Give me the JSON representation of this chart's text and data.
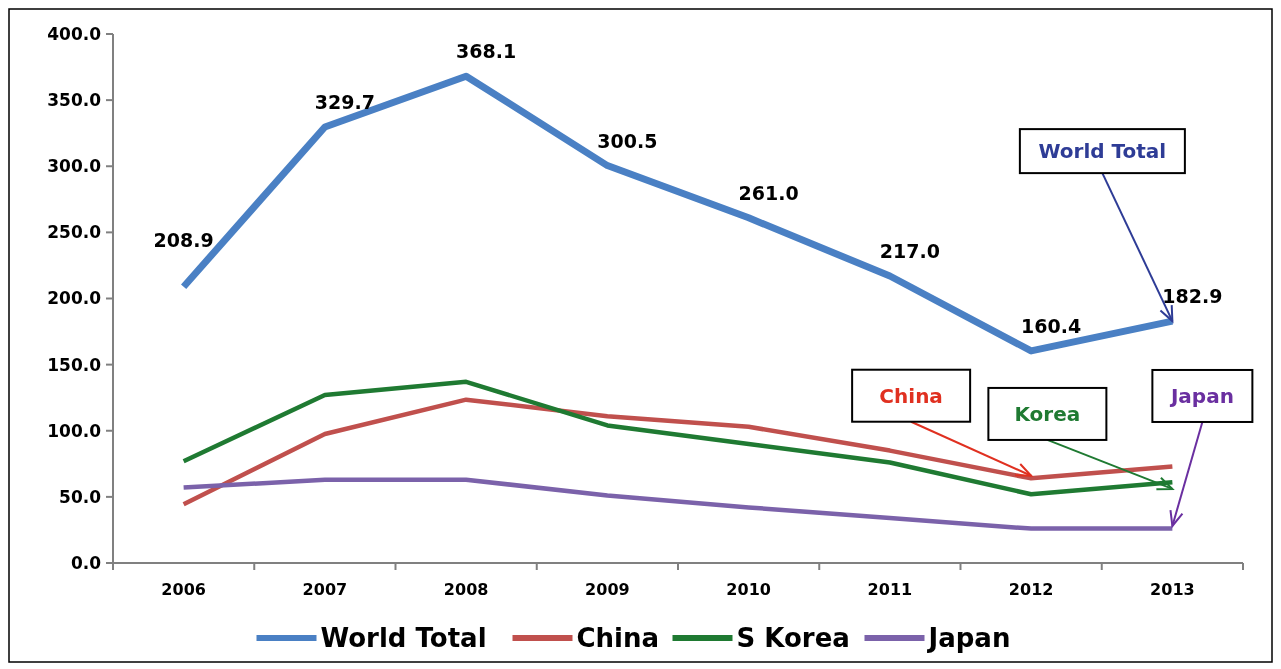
{
  "chart_data": {
    "type": "line",
    "categories": [
      "2006",
      "2007",
      "2008",
      "2009",
      "2010",
      "2011",
      "2012",
      "2013"
    ],
    "series": [
      {
        "name": "World Total",
        "color": "#4a80c4",
        "values": [
          208.9,
          329.7,
          368.1,
          300.5,
          261.0,
          217.0,
          160.4,
          182.9
        ],
        "value_labels": [
          "208.9",
          "329.7",
          "368.1",
          "300.5",
          "261.0",
          "217.0",
          "160.4",
          "182.9"
        ]
      },
      {
        "name": "China",
        "color": "#c0504d",
        "values": [
          44.5,
          97.5,
          123.5,
          111,
          103,
          85,
          64,
          73
        ]
      },
      {
        "name": "S Korea",
        "color": "#1f7a32",
        "values": [
          77,
          127,
          137,
          104,
          90,
          76,
          52,
          61
        ]
      },
      {
        "name": "Japan",
        "color": "#7b62aa",
        "values": [
          57,
          63,
          63,
          51,
          42,
          34,
          26,
          26
        ]
      }
    ],
    "ylim": [
      0,
      400
    ],
    "yticks": [
      {
        "value": 0,
        "label": "0.0"
      },
      {
        "value": 50,
        "label": "50.0"
      },
      {
        "value": 100,
        "label": "100.0"
      },
      {
        "value": 150,
        "label": "150.0"
      },
      {
        "value": 200,
        "label": "200.0"
      },
      {
        "value": 250,
        "label": "250.0"
      },
      {
        "value": 300,
        "label": "300.0"
      },
      {
        "value": 350,
        "label": "350.0"
      },
      {
        "value": 400,
        "label": "400.0"
      }
    ],
    "annotations": [
      {
        "text": "World Total",
        "x": "2013",
        "y": 182.9
      },
      {
        "text": "China",
        "x": "2012",
        "y": 66
      },
      {
        "text": "Korea",
        "x": "2013",
        "y": 56
      },
      {
        "text": "Japan",
        "x": "2013",
        "y": 28
      }
    ],
    "legend": "bottom",
    "grid": false,
    "marker": "none",
    "line_style": "solid"
  }
}
